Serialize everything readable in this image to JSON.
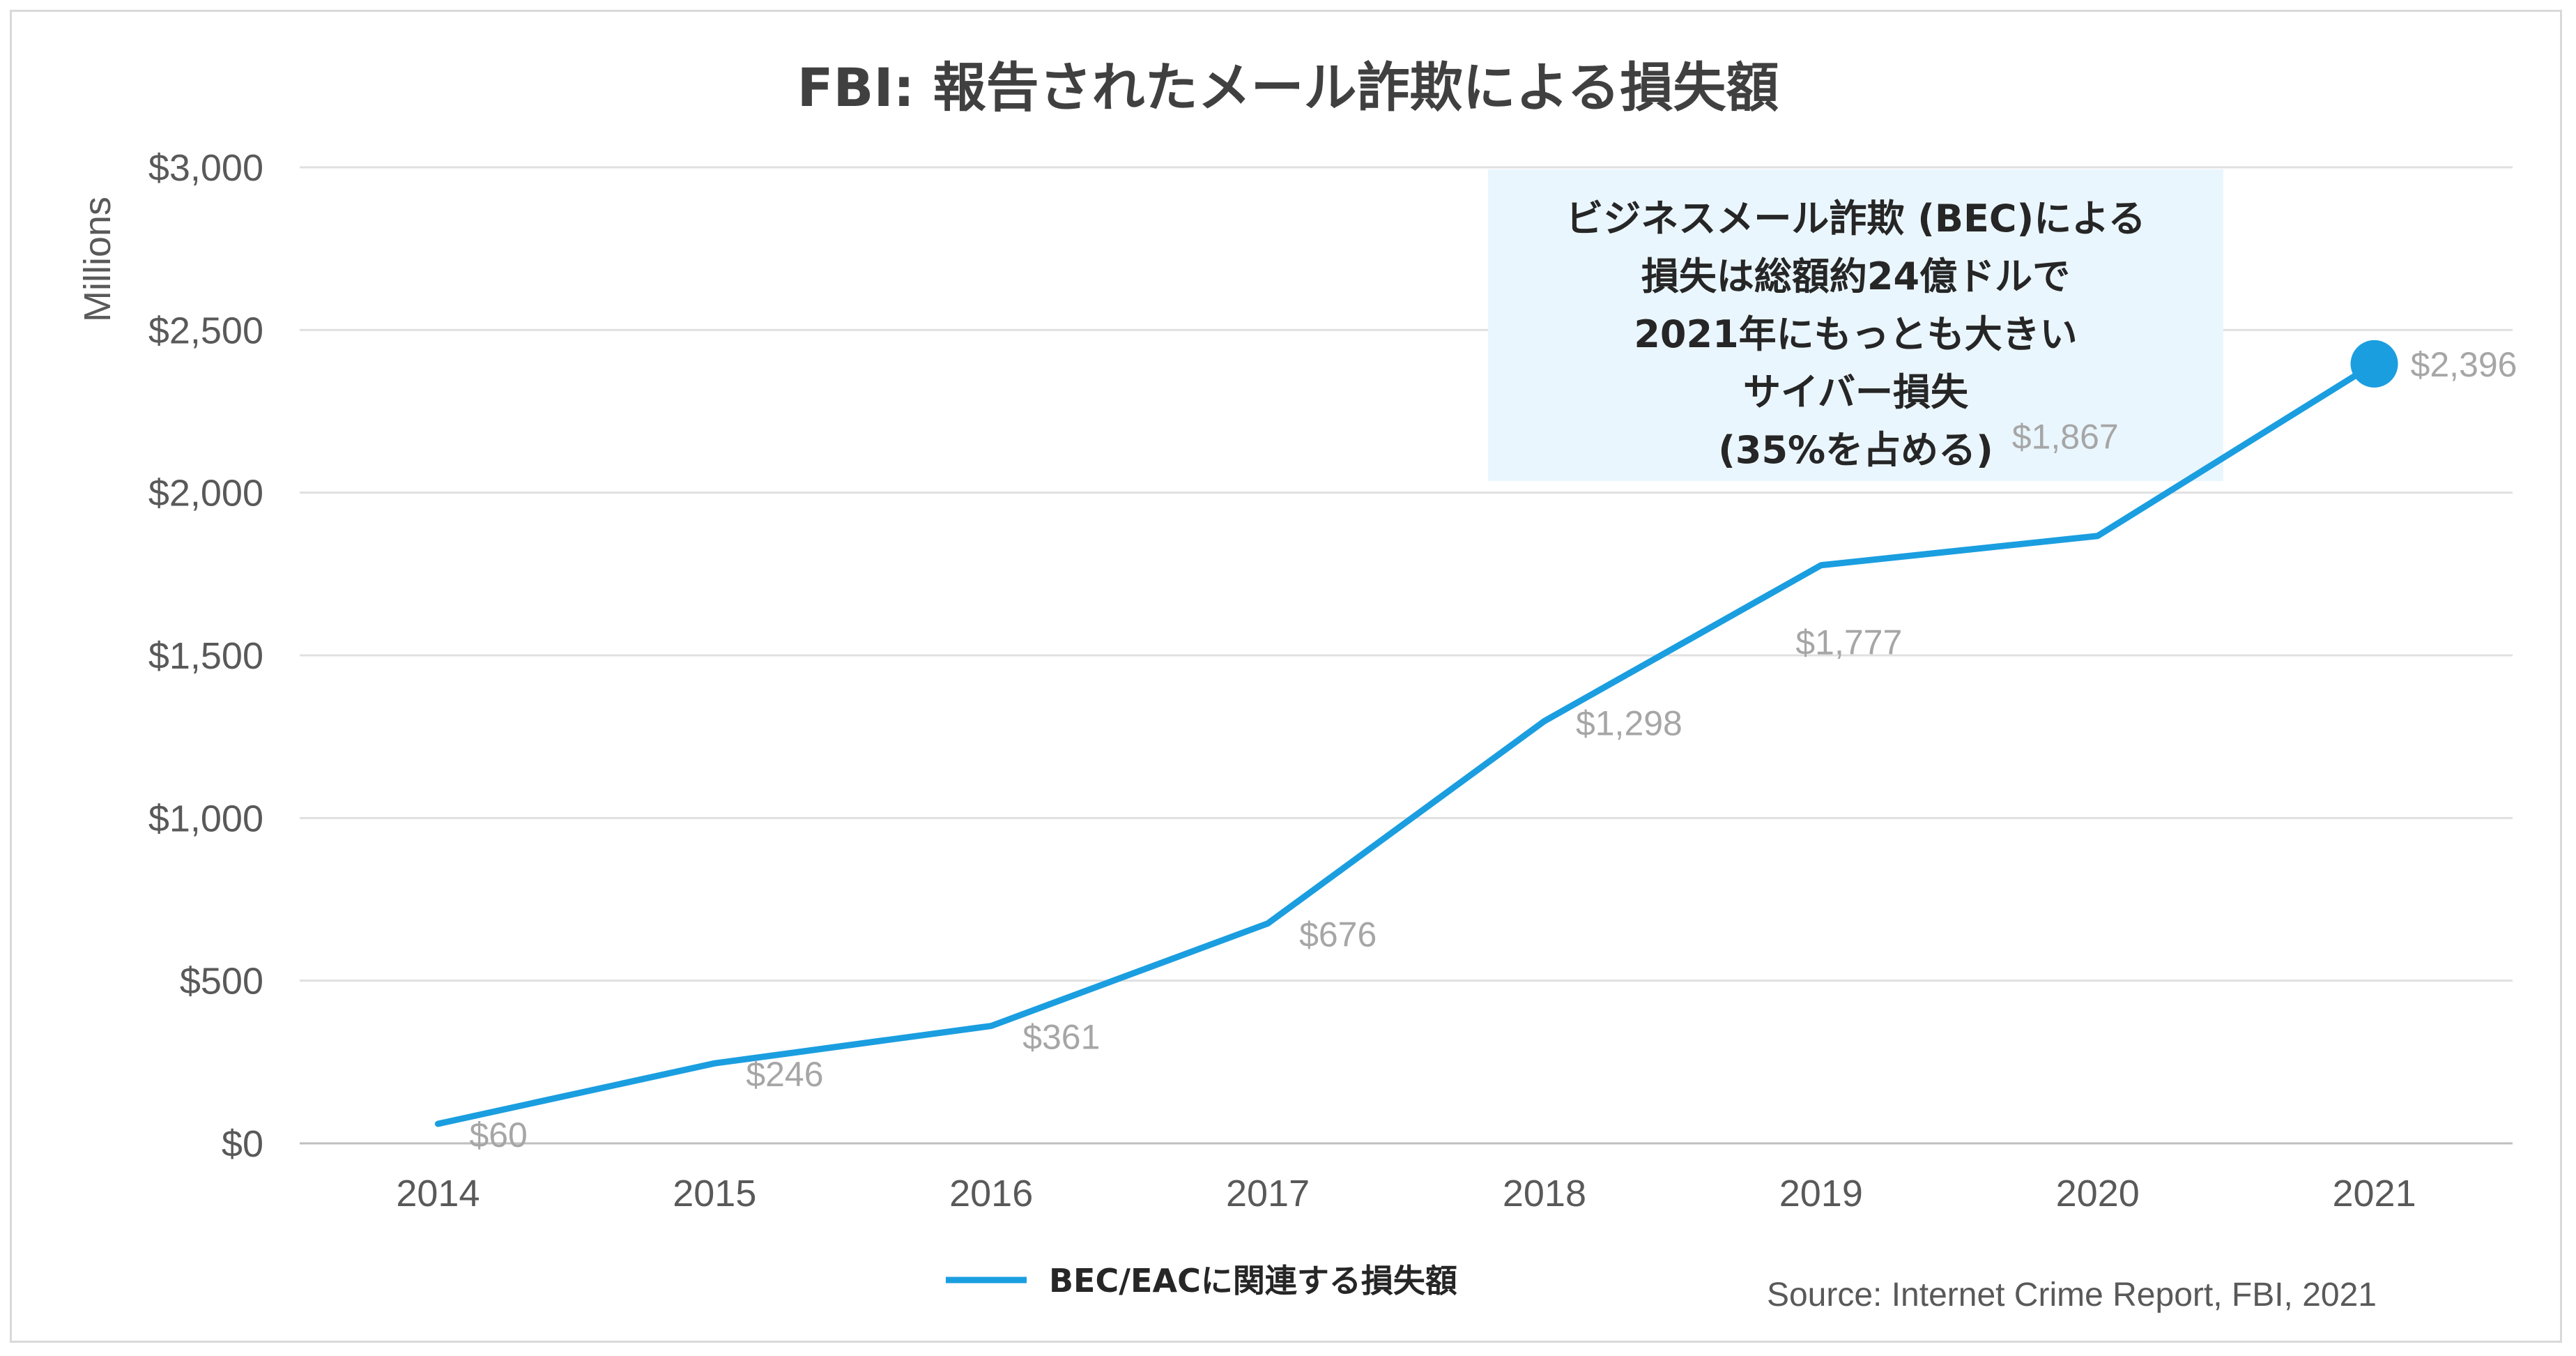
{
  "chart_data": {
    "type": "line",
    "title": "FBI: 報告されたメール詐欺による損失額",
    "ylabel": "Millions",
    "xlabel": "",
    "categories": [
      "2014",
      "2015",
      "2016",
      "2017",
      "2018",
      "2019",
      "2020",
      "2021"
    ],
    "series": [
      {
        "name": "BEC/EACに関連する損失額",
        "values": [
          60,
          246,
          361,
          676,
          1298,
          1777,
          1867,
          2396
        ],
        "data_labels": [
          "$60",
          "$246",
          "$361",
          "$676",
          "$1,298",
          "$1,777",
          "$1,867",
          "$2,396"
        ],
        "color": "#1a9ee0"
      }
    ],
    "ylim": [
      0,
      3000
    ],
    "yticks": [
      0,
      500,
      1000,
      1500,
      2000,
      2500,
      3000
    ],
    "ytick_labels": [
      "$0",
      "$500",
      "$1,000",
      "$1,500",
      "$2,000",
      "$2,500",
      "$3,000"
    ],
    "grid": true,
    "legend_position": "bottom",
    "highlight_point": "2021",
    "annotation": {
      "lines": [
        "ビジネスメール詐欺 (BEC)による",
        "損失は総額約24億ドルで",
        "2021年にもっとも大きい",
        "サイバー損失",
        "(35%を占める)"
      ],
      "background": "#eaf6fd"
    },
    "source": "Source: Internet Crime Report, FBI, 2021"
  }
}
